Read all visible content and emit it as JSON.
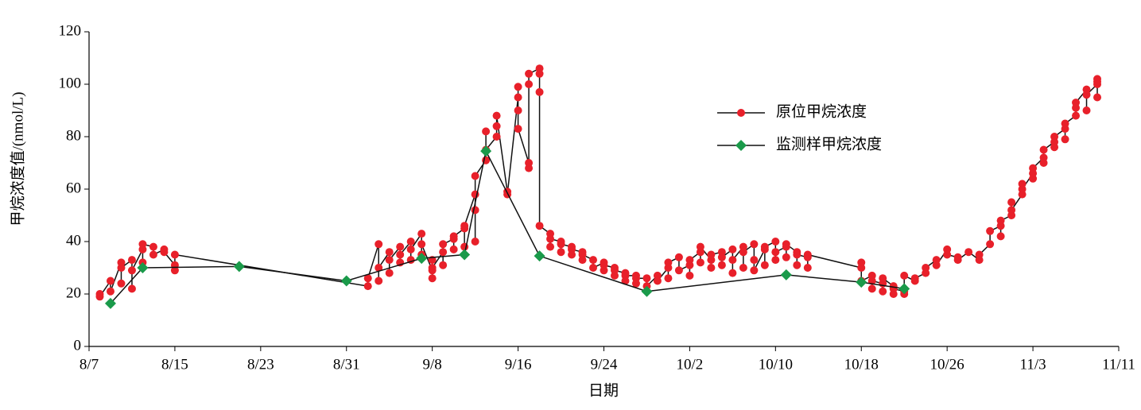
{
  "chart_data": {
    "type": "line",
    "x_label": "日期",
    "y_label": "甲烷浓度值/(nmol/L)",
    "xlim": [
      "8/7",
      "11/11"
    ],
    "xticks": [
      "8/7",
      "8/15",
      "8/23",
      "8/31",
      "9/8",
      "9/16",
      "9/24",
      "10/2",
      "10/10",
      "10/18",
      "10/26",
      "11/3",
      "11/11"
    ],
    "ylim": [
      0,
      120
    ],
    "yticks": [
      0,
      20,
      40,
      60,
      80,
      100,
      120
    ],
    "legend": "upper-right",
    "series": [
      {
        "name": "原位甲烷浓度",
        "color": "#e8202a",
        "marker": "circle",
        "x": [
          "8/8",
          "8/8",
          "8/9",
          "8/9",
          "8/10",
          "8/10",
          "8/10",
          "8/11",
          "8/11",
          "8/11",
          "8/12",
          "8/12",
          "8/12",
          "8/13",
          "8/13",
          "8/14",
          "8/14",
          "8/15",
          "8/15",
          "8/15",
          "9/2",
          "9/2",
          "9/3",
          "9/3",
          "9/3",
          "9/4",
          "9/4",
          "9/4",
          "9/5",
          "9/5",
          "9/5",
          "9/6",
          "9/6",
          "9/6",
          "9/7",
          "9/7",
          "9/7",
          "9/8",
          "9/8",
          "9/8",
          "9/8",
          "9/9",
          "9/9",
          "9/9",
          "9/10",
          "9/10",
          "9/10",
          "9/11",
          "9/11",
          "9/11",
          "9/12",
          "9/12",
          "9/12",
          "9/12",
          "9/13",
          "9/13",
          "9/13",
          "9/14",
          "9/14",
          "9/14",
          "9/15",
          "9/15",
          "9/16",
          "9/16",
          "9/16",
          "9/16",
          "9/17",
          "9/17",
          "9/17",
          "9/17",
          "9/18",
          "9/18",
          "9/18",
          "9/18",
          "9/19",
          "9/19",
          "9/19",
          "9/20",
          "9/20",
          "9/20",
          "9/21",
          "9/21",
          "9/21",
          "9/22",
          "9/22",
          "9/22",
          "9/23",
          "9/23",
          "9/24",
          "9/24",
          "9/24",
          "9/25",
          "9/25",
          "9/25",
          "9/26",
          "9/26",
          "9/26",
          "9/27",
          "9/27",
          "9/27",
          "9/28",
          "9/28",
          "9/29",
          "9/29",
          "9/30",
          "9/30",
          "9/30",
          "10/1",
          "10/1",
          "10/2",
          "10/2",
          "10/2",
          "10/3",
          "10/3",
          "10/3",
          "10/4",
          "10/4",
          "10/4",
          "10/5",
          "10/5",
          "10/5",
          "10/6",
          "10/6",
          "10/6",
          "10/7",
          "10/7",
          "10/7",
          "10/8",
          "10/8",
          "10/8",
          "10/9",
          "10/9",
          "10/9",
          "10/10",
          "10/10",
          "10/10",
          "10/11",
          "10/11",
          "10/11",
          "10/12",
          "10/12",
          "10/12",
          "10/13",
          "10/13",
          "10/13",
          "10/18",
          "10/18",
          "10/18",
          "10/19",
          "10/19",
          "10/19",
          "10/20",
          "10/20",
          "10/20",
          "10/21",
          "10/21",
          "10/21",
          "10/22",
          "10/22",
          "10/22",
          "10/23",
          "10/23",
          "10/24",
          "10/24",
          "10/25",
          "10/25",
          "10/26",
          "10/26",
          "10/27",
          "10/27",
          "10/28",
          "10/29",
          "10/29",
          "10/30",
          "10/30",
          "10/31",
          "10/31",
          "10/31",
          "11/1",
          "11/1",
          "11/1",
          "11/2",
          "11/2",
          "11/2",
          "11/3",
          "11/3",
          "11/3",
          "11/4",
          "11/4",
          "11/4",
          "11/5",
          "11/5",
          "11/5",
          "11/6",
          "11/6",
          "11/6",
          "11/7",
          "11/7",
          "11/7",
          "11/8",
          "11/8",
          "11/8",
          "11/9",
          "11/9",
          "11/9",
          "11/9"
        ],
        "values": [
          20,
          19,
          25,
          21,
          32,
          24,
          30,
          33,
          22,
          29,
          37,
          32,
          39,
          38,
          35,
          37,
          36,
          31,
          29,
          35,
          23,
          26,
          39,
          25,
          30,
          36,
          28,
          33,
          38,
          32,
          35,
          40,
          33,
          37,
          43,
          35,
          39,
          29,
          26,
          33,
          30,
          36,
          31,
          39,
          41,
          37,
          42,
          45,
          38,
          46,
          58,
          40,
          52,
          65,
          71,
          82,
          75,
          80,
          84,
          88,
          59,
          58,
          95,
          90,
          99,
          83,
          70,
          100,
          68,
          104,
          106,
          97,
          104,
          46,
          43,
          38,
          41,
          40,
          36,
          39,
          38,
          35,
          37,
          36,
          33,
          35,
          33,
          30,
          32,
          29,
          31,
          30,
          27,
          29,
          28,
          25,
          27,
          27,
          24,
          26,
          26,
          23,
          27,
          25,
          30,
          26,
          32,
          34,
          29,
          31,
          27,
          33,
          36,
          32,
          38,
          33,
          30,
          35,
          36,
          31,
          34,
          37,
          28,
          33,
          38,
          30,
          36,
          39,
          33,
          29,
          37,
          31,
          38,
          40,
          33,
          36,
          38,
          34,
          39,
          36,
          31,
          35,
          34,
          30,
          35,
          30,
          32,
          25,
          27,
          22,
          25,
          24,
          21,
          26,
          23,
          20,
          22,
          21,
          20,
          27,
          25,
          26,
          28,
          30,
          33,
          31,
          37,
          35,
          34,
          33,
          36,
          33,
          35,
          39,
          44,
          46,
          42,
          48,
          50,
          55,
          52,
          58,
          62,
          60,
          66,
          64,
          68,
          72,
          70,
          75,
          78,
          76,
          80,
          83,
          79,
          85,
          88,
          91,
          93,
          98,
          90,
          96,
          100,
          95,
          102,
          101
        ]
      },
      {
        "name": "监测样甲烷浓度",
        "color": "#1a9a4a",
        "marker": "diamond",
        "x": [
          "8/9",
          "8/12",
          "8/21",
          "8/31",
          "9/7",
          "9/11",
          "9/13",
          "9/18",
          "9/28",
          "10/11",
          "10/18",
          "10/22"
        ],
        "values": [
          16.4,
          30,
          30.5,
          25,
          33.6,
          35,
          74.5,
          34.5,
          21,
          27.3,
          24.5,
          22
        ]
      }
    ]
  }
}
